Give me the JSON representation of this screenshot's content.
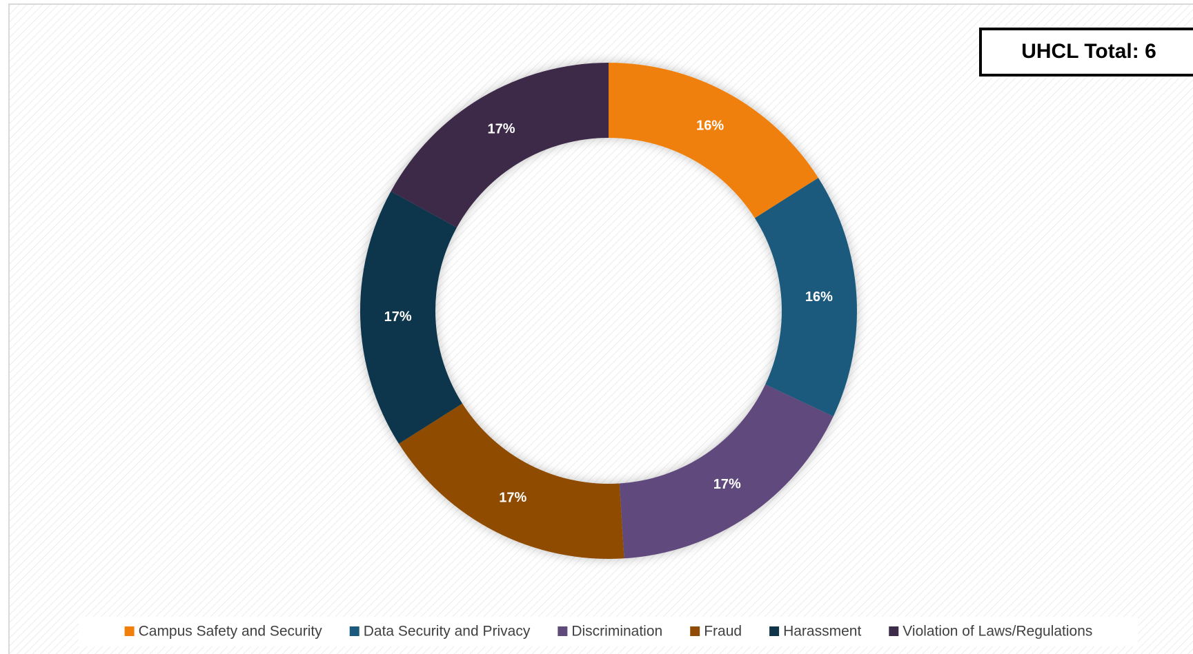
{
  "chart_data": {
    "type": "donut",
    "annotation": "UHCL Total: 6",
    "categories": [
      "Campus Safety and Security",
      "Data Security and Privacy",
      "Discrimination",
      "Fraud",
      "Harassment",
      "Violation of Laws/Regulations"
    ],
    "values": [
      16,
      16,
      17,
      17,
      17,
      17
    ],
    "colors": [
      "#f0800a",
      "#1c5a7d",
      "#604a7b",
      "#8f4c06",
      "#10354b",
      "#3c2b49"
    ],
    "legend": "bottom"
  }
}
